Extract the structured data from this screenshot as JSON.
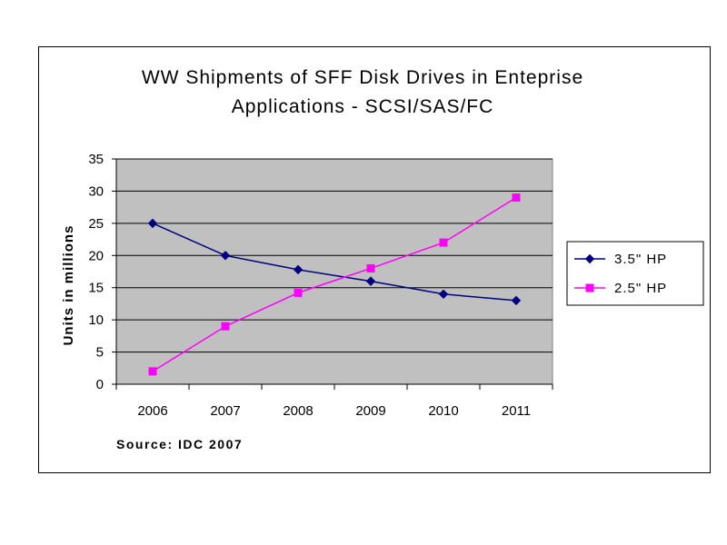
{
  "chart_data": {
    "type": "line",
    "title_lines": [
      "WW Shipments of SFF Disk Drives in Enteprise",
      "Applications - SCSI/SAS/FC"
    ],
    "xlabel": "",
    "ylabel": "Units in millions",
    "categories": [
      "2006",
      "2007",
      "2008",
      "2009",
      "2010",
      "2011"
    ],
    "ylim": [
      0,
      35
    ],
    "yticks": [
      0,
      5,
      10,
      15,
      20,
      25,
      30,
      35
    ],
    "grid": true,
    "plot_background": "#c0c0c0",
    "legend_position": "right",
    "series": [
      {
        "name": "3.5\" HP",
        "values": [
          25,
          20,
          17.8,
          16,
          14,
          13
        ],
        "color": "#000080",
        "marker": "diamond"
      },
      {
        "name": "2.5\" HP",
        "values": [
          2,
          9,
          14.2,
          18,
          22,
          29
        ],
        "color": "#ff00ff",
        "marker": "square"
      }
    ],
    "annotation": "Source: IDC 2007"
  }
}
